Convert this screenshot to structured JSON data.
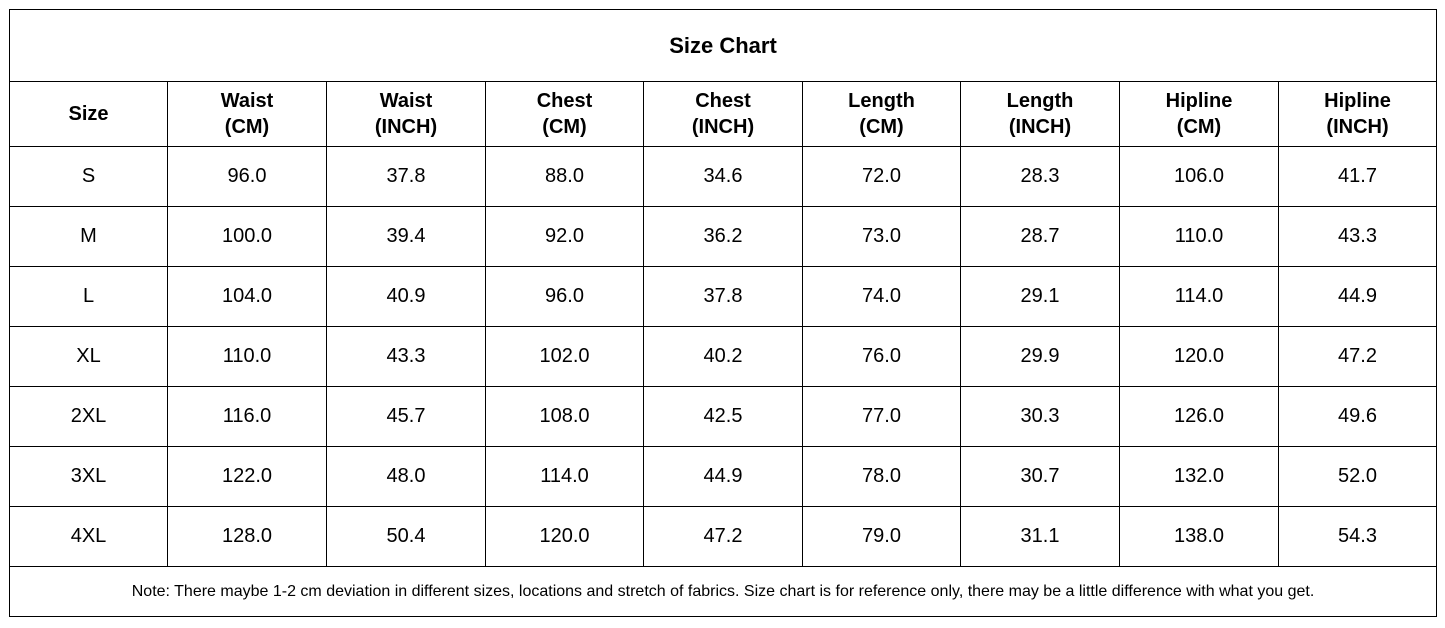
{
  "title": "Size Chart",
  "headers": [
    {
      "line1": "Size",
      "line2": ""
    },
    {
      "line1": "Waist",
      "line2": "(CM)"
    },
    {
      "line1": "Waist",
      "line2": "(INCH)"
    },
    {
      "line1": "Chest",
      "line2": "(CM)"
    },
    {
      "line1": "Chest",
      "line2": "(INCH)"
    },
    {
      "line1": "Length",
      "line2": "(CM)"
    },
    {
      "line1": "Length",
      "line2": "(INCH)"
    },
    {
      "line1": "Hipline",
      "line2": "(CM)"
    },
    {
      "line1": "Hipline",
      "line2": "(INCH)"
    }
  ],
  "rows": [
    [
      "S",
      "96.0",
      "37.8",
      "88.0",
      "34.6",
      "72.0",
      "28.3",
      "106.0",
      "41.7"
    ],
    [
      "M",
      "100.0",
      "39.4",
      "92.0",
      "36.2",
      "73.0",
      "28.7",
      "110.0",
      "43.3"
    ],
    [
      "L",
      "104.0",
      "40.9",
      "96.0",
      "37.8",
      "74.0",
      "29.1",
      "114.0",
      "44.9"
    ],
    [
      "XL",
      "110.0",
      "43.3",
      "102.0",
      "40.2",
      "76.0",
      "29.9",
      "120.0",
      "47.2"
    ],
    [
      "2XL",
      "116.0",
      "45.7",
      "108.0",
      "42.5",
      "77.0",
      "30.3",
      "126.0",
      "49.6"
    ],
    [
      "3XL",
      "122.0",
      "48.0",
      "114.0",
      "44.9",
      "78.0",
      "30.7",
      "132.0",
      "52.0"
    ],
    [
      "4XL",
      "128.0",
      "50.4",
      "120.0",
      "47.2",
      "79.0",
      "31.1",
      "138.0",
      "54.3"
    ]
  ],
  "note": "Note: There maybe 1-2 cm deviation in different sizes, locations and stretch of fabrics. Size chart is for reference only, there may be a little difference with what you get."
}
